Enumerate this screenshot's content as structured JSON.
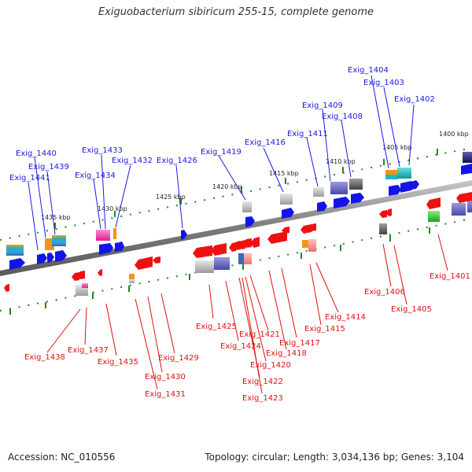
{
  "title": "Exiguobacterium sibiricum 255-15, complete genome",
  "footer": {
    "accession_label": "Accession: NC_010556",
    "topology_label": "Topology: circular; Length: 3,034,136 bp; Genes: 3,104"
  },
  "colors": {
    "forward_label": "#1a1ae6",
    "reverse_label": "#e01010",
    "backbone": "#808080",
    "tick": "#1f8a1f",
    "forward_gene": "#1414e8",
    "reverse_gene": "#ee1111"
  },
  "scale_labels": [
    "1400 kbp",
    "1405 kbp",
    "1410 kbp",
    "1415 kbp",
    "1420 kbp",
    "1425 kbp",
    "1430 kbp",
    "1435 kbp"
  ],
  "forward_labels": [
    "Exig_1404",
    "Exig_1403",
    "Exig_1402",
    "Exig_1409",
    "Exig_1408",
    "Exig_1411",
    "Exig_1416",
    "Exig_1419",
    "Exig_1426",
    "Exig_1433",
    "Exig_1432",
    "Exig_1434",
    "Exig_1440",
    "Exig_1439",
    "Exig_1441"
  ],
  "reverse_labels": [
    "Exig_1401",
    "Exig_1406",
    "Exig_1405",
    "Exig_1414",
    "Exig_1415",
    "Exig_1417",
    "Exig_1418",
    "Exig_1421",
    "Exig_1420",
    "Exig_1425",
    "Exig_1424",
    "Exig_1422",
    "Exig_1423",
    "Exig_1429",
    "Exig_1430",
    "Exig_1431",
    "Exig_1435",
    "Exig_1437",
    "Exig_1438"
  ]
}
